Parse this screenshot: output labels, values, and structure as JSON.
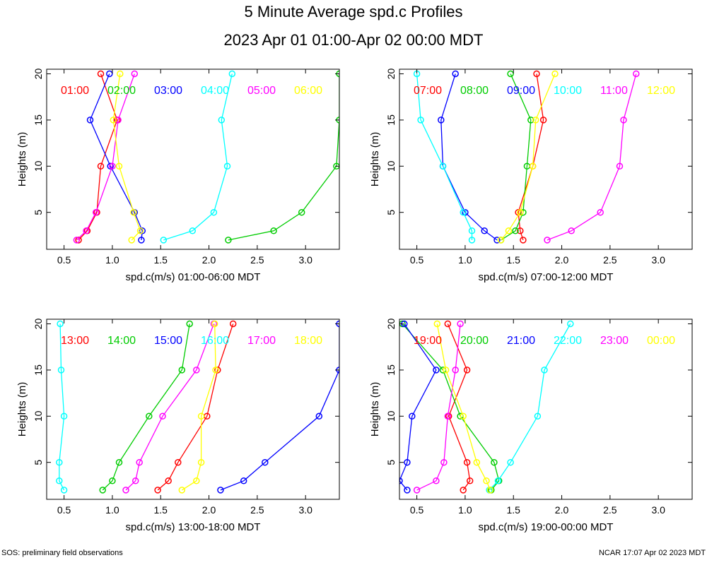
{
  "title": "5 Minute Average spd.c Profiles",
  "subtitle": "2023 Apr 01 01:00-Apr 02 00:00 MDT",
  "footer": {
    "left": "SOS: preliminary field observations",
    "right": "NCAR 17:07 Apr 02 2023 MDT"
  },
  "chart_data": [
    {
      "type": "line",
      "xlabel": "spd.c(m/s) 01:00-06:00 MDT",
      "ylabel": "Heights (m)",
      "xlim": [
        0.32,
        3.35
      ],
      "ylim": [
        1,
        20.5
      ],
      "xticks": [
        {
          "v": 0.5,
          "l": "0.5"
        },
        {
          "v": 1.0,
          "l": "1.0"
        },
        {
          "v": 1.5,
          "l": "1.5"
        },
        {
          "v": 2.0,
          "l": "2.0"
        },
        {
          "v": 2.5,
          "l": "2.5"
        },
        {
          "v": 3.0,
          "l": "3.0"
        }
      ],
      "yticks": [
        {
          "v": 5,
          "l": "5"
        },
        {
          "v": 10,
          "l": "10"
        },
        {
          "v": 15,
          "l": "15"
        },
        {
          "v": 20,
          "l": "20"
        }
      ],
      "heights": [
        2,
        3,
        5,
        10,
        15,
        20
      ],
      "series": [
        {
          "name": "01:00",
          "color": "#ff0000",
          "x": [
            0.65,
            0.74,
            0.84,
            0.88,
            1.05,
            0.88
          ]
        },
        {
          "name": "02:00",
          "color": "#00cc00",
          "x": [
            2.2,
            2.67,
            2.96,
            3.32,
            3.35,
            3.35
          ]
        },
        {
          "name": "03:00",
          "color": "#0000ff",
          "x": [
            1.3,
            1.31,
            1.23,
            0.98,
            0.77,
            0.97
          ]
        },
        {
          "name": "04:00",
          "color": "#00ffff",
          "x": [
            1.53,
            1.83,
            2.05,
            2.19,
            2.13,
            2.24
          ]
        },
        {
          "name": "05:00",
          "color": "#ff00ff",
          "x": [
            0.63,
            0.73,
            0.83,
            1.0,
            1.06,
            1.23
          ]
        },
        {
          "name": "06:00",
          "color": "#ffff00",
          "x": [
            1.2,
            1.29,
            1.22,
            1.07,
            1.01,
            1.08
          ]
        }
      ]
    },
    {
      "type": "line",
      "xlabel": "spd.c(m/s) 07:00-12:00 MDT",
      "ylabel": "Heights (m)",
      "xlim": [
        0.32,
        3.35
      ],
      "ylim": [
        1,
        20.5
      ],
      "xticks": [
        {
          "v": 0.5,
          "l": "0.5"
        },
        {
          "v": 1.0,
          "l": "1.0"
        },
        {
          "v": 1.5,
          "l": "1.5"
        },
        {
          "v": 2.0,
          "l": "2.0"
        },
        {
          "v": 2.5,
          "l": "2.5"
        },
        {
          "v": 3.0,
          "l": "3.0"
        }
      ],
      "yticks": [
        {
          "v": 5,
          "l": "5"
        },
        {
          "v": 10,
          "l": "10"
        },
        {
          "v": 15,
          "l": "15"
        },
        {
          "v": 20,
          "l": "20"
        }
      ],
      "heights": [
        2,
        3,
        5,
        10,
        15,
        20
      ],
      "series": [
        {
          "name": "07:00",
          "color": "#ff0000",
          "x": [
            1.6,
            1.57,
            1.55,
            1.7,
            1.81,
            1.74
          ]
        },
        {
          "name": "08:00",
          "color": "#00cc00",
          "x": [
            1.37,
            1.52,
            1.6,
            1.64,
            1.68,
            1.47
          ]
        },
        {
          "name": "09:00",
          "color": "#0000ff",
          "x": [
            1.33,
            1.2,
            1.0,
            0.77,
            0.75,
            0.9
          ]
        },
        {
          "name": "10:00",
          "color": "#00ffff",
          "x": [
            1.07,
            1.07,
            0.98,
            0.77,
            0.54,
            0.5
          ]
        },
        {
          "name": "11:00",
          "color": "#ff00ff",
          "x": [
            1.85,
            2.1,
            2.4,
            2.6,
            2.64,
            2.77
          ]
        },
        {
          "name": "12:00",
          "color": "#ffff00",
          "x": [
            1.37,
            1.45,
            1.57,
            1.7,
            1.73,
            1.93
          ]
        }
      ]
    },
    {
      "type": "line",
      "xlabel": "spd.c(m/s) 13:00-18:00 MDT",
      "ylabel": "Heights (m)",
      "xlim": [
        0.32,
        3.35
      ],
      "ylim": [
        1,
        20.5
      ],
      "xticks": [
        {
          "v": 0.5,
          "l": "0.5"
        },
        {
          "v": 1.0,
          "l": "1.0"
        },
        {
          "v": 1.5,
          "l": "1.5"
        },
        {
          "v": 2.0,
          "l": "2.0"
        },
        {
          "v": 2.5,
          "l": "2.5"
        },
        {
          "v": 3.0,
          "l": "3.0"
        }
      ],
      "yticks": [
        {
          "v": 5,
          "l": "5"
        },
        {
          "v": 10,
          "l": "10"
        },
        {
          "v": 15,
          "l": "15"
        },
        {
          "v": 20,
          "l": "20"
        }
      ],
      "heights": [
        2,
        3,
        5,
        10,
        15,
        20
      ],
      "series": [
        {
          "name": "13:00",
          "color": "#ff0000",
          "x": [
            1.47,
            1.58,
            1.68,
            1.98,
            2.09,
            2.25
          ]
        },
        {
          "name": "14:00",
          "color": "#00cc00",
          "x": [
            0.9,
            1.0,
            1.07,
            1.38,
            1.72,
            1.8
          ]
        },
        {
          "name": "15:00",
          "color": "#0000ff",
          "x": [
            2.12,
            2.36,
            2.58,
            3.14,
            3.35,
            3.35
          ]
        },
        {
          "name": "16:00",
          "color": "#00ffff",
          "x": [
            0.5,
            0.45,
            0.45,
            0.5,
            0.47,
            0.46
          ]
        },
        {
          "name": "17:00",
          "color": "#ff00ff",
          "x": [
            1.14,
            1.24,
            1.28,
            1.52,
            1.87,
            2.05
          ]
        },
        {
          "name": "18:00",
          "color": "#ffff00",
          "x": [
            1.72,
            1.87,
            1.92,
            1.92,
            2.07,
            2.06
          ]
        }
      ]
    },
    {
      "type": "line",
      "xlabel": "spd.c(m/s) 19:00-00:00 MDT",
      "ylabel": "Heights (m)",
      "xlim": [
        0.32,
        3.35
      ],
      "ylim": [
        1,
        20.5
      ],
      "xticks": [
        {
          "v": 0.5,
          "l": "0.5"
        },
        {
          "v": 1.0,
          "l": "1.0"
        },
        {
          "v": 1.5,
          "l": "1.5"
        },
        {
          "v": 2.0,
          "l": "2.0"
        },
        {
          "v": 2.5,
          "l": "2.5"
        },
        {
          "v": 3.0,
          "l": "3.0"
        }
      ],
      "yticks": [
        {
          "v": 5,
          "l": "5"
        },
        {
          "v": 10,
          "l": "10"
        },
        {
          "v": 15,
          "l": "15"
        },
        {
          "v": 20,
          "l": "20"
        }
      ],
      "heights": [
        2,
        3,
        5,
        10,
        15,
        20
      ],
      "series": [
        {
          "name": "19:00",
          "color": "#ff0000",
          "x": [
            0.98,
            1.05,
            1.02,
            0.83,
            1.02,
            0.82
          ]
        },
        {
          "name": "20:00",
          "color": "#00cc00",
          "x": [
            1.27,
            1.35,
            1.3,
            0.95,
            0.77,
            0.35
          ]
        },
        {
          "name": "21:00",
          "color": "#0000ff",
          "x": [
            0.4,
            0.32,
            0.4,
            0.45,
            0.7,
            0.37
          ]
        },
        {
          "name": "22:00",
          "color": "#00ffff",
          "x": [
            1.25,
            1.34,
            1.47,
            1.75,
            1.82,
            2.09
          ]
        },
        {
          "name": "23:00",
          "color": "#ff00ff",
          "x": [
            0.5,
            0.7,
            0.78,
            0.82,
            0.9,
            0.95
          ]
        },
        {
          "name": "00:00",
          "color": "#ffff00",
          "x": [
            1.26,
            1.22,
            1.12,
            0.98,
            0.8,
            0.71
          ]
        }
      ]
    }
  ]
}
